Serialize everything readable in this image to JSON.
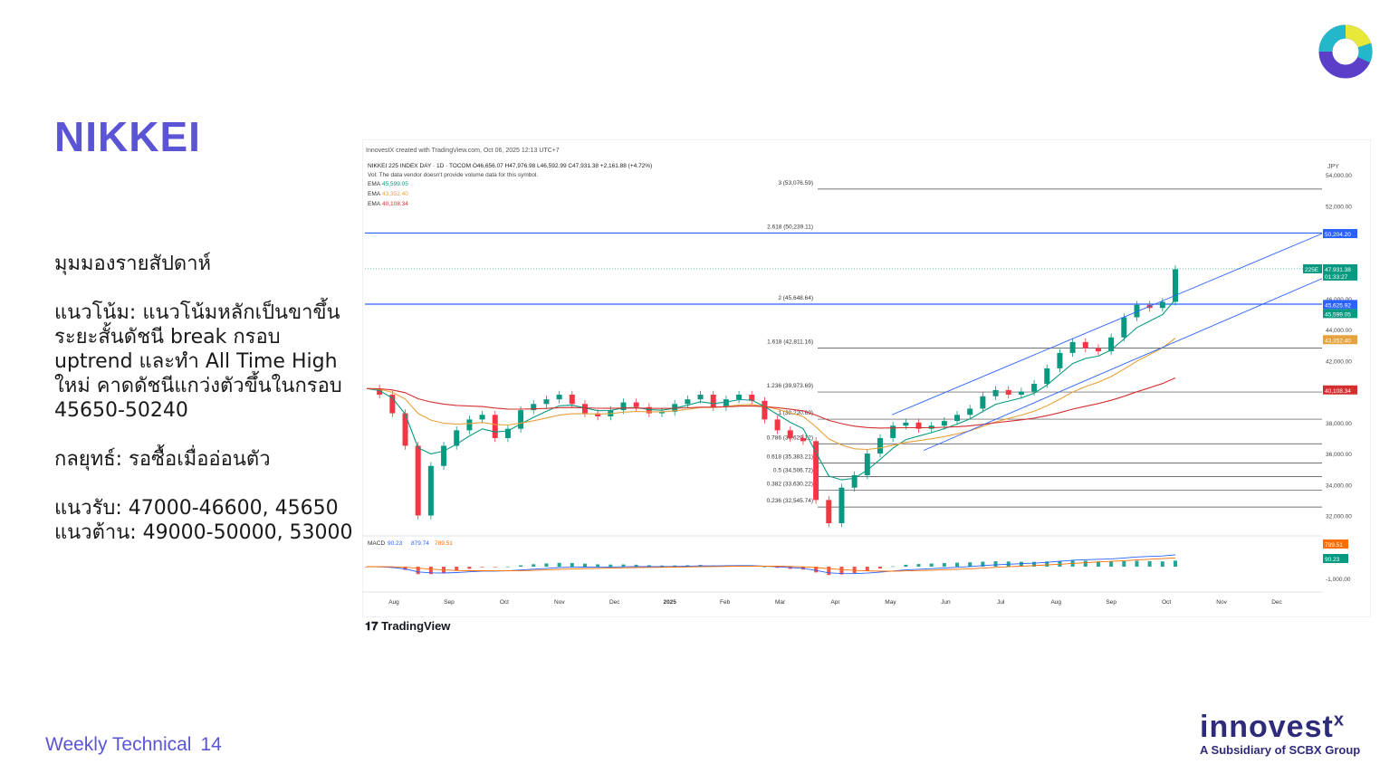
{
  "slide": {
    "title": "NIKKEI",
    "paragraphs": [
      "มุมมองรายสัปดาห์",
      "แนวโน้ม: แนวโน้มหลักเป็นขาขึ้น ระยะสั้นดัชนี break กรอบ uptrend และทำ All Time High ใหม่ คาดดัชนีแกว่งตัวขึ้นในกรอบ 45650-50240",
      "กลยุทธ์: รอซื้อเมื่ออ่อนตัว",
      "แนวรับ: 47000-46600, 45650\nแนวต้าน: 49000-50000, 53000"
    ],
    "footer_label": "Weekly Technical",
    "page_number": "14",
    "brand_word": "innovest",
    "brand_x": "x",
    "brand_subtitle": "A Subsidiary of SCBX Group",
    "tradingview_label": "TradingView",
    "colors": {
      "accent": "#5b55d6",
      "brand": "#2e2b7a",
      "logo_yellow": "#e8e83a",
      "logo_teal": "#22b7c9",
      "logo_purple": "#5b3fc9"
    }
  },
  "chart_data": {
    "type": "candlestick",
    "header": "InnovestX created with TradingView.com, Oct 06, 2025 12:13 UTC+7",
    "symbol_line": "NIKKEI 225 INDEX DAY · 1D · TOCOM  O46,656.07  H47,976.98  L46,592.99  C47,931.38  +2,161.88 (+4.72%)",
    "vol_note": "Vol: The data vendor doesn't provide volume data for this symbol.",
    "ema_labels": [
      "EMA",
      "EMA",
      "EMA"
    ],
    "ema_values": [
      "45,599.05",
      "43,352.40",
      "40,108.34"
    ],
    "ema_colors": [
      "#089981",
      "#e6a23c",
      "#d32f2f"
    ],
    "currency": "JPY",
    "ylim": [
      30800,
      55000
    ],
    "y_ticks": [
      32000,
      34000,
      36000,
      38000,
      40000,
      42000,
      44000,
      46000,
      52000,
      54000
    ],
    "y_tick_labels": [
      "32,000.00",
      "34,000.00",
      "36,000.00",
      "38,000.00",
      "40,000.00",
      "42,000.00",
      "44,000.00",
      "46,000.00",
      "52,000.00",
      "54,000.00"
    ],
    "x_labels": [
      "Aug",
      "Sep",
      "Oct",
      "Nov",
      "Dec",
      "2025",
      "Feb",
      "Mar",
      "Apr",
      "May",
      "Jun",
      "Jul",
      "Aug",
      "Sep",
      "Oct",
      "Nov",
      "Dec"
    ],
    "fib_levels": [
      {
        "label": "3 (53,076.59)",
        "value": 53076.59
      },
      {
        "label": "2.618 (50,239.11)",
        "value": 50239.11
      },
      {
        "label": "2 (45,648.64)",
        "value": 45648.64
      },
      {
        "label": "1.618 (42,811.16)",
        "value": 42811.16
      },
      {
        "label": "1.236 (39,973.69)",
        "value": 39973.69
      },
      {
        "label": "1 (38,220.69)",
        "value": 38220.69
      },
      {
        "label": "0.786 (36,629.12)",
        "value": 36629.12
      },
      {
        "label": "0.618 (35,383.21)",
        "value": 35383.21
      },
      {
        "label": "0.5 (34,506.72)",
        "value": 34506.72
      },
      {
        "label": "0.382 (33,630.22)",
        "value": 33630.22
      },
      {
        "label": "0.236 (32,545.74)",
        "value": 32545.74
      }
    ],
    "price_tags": [
      {
        "label": "50,204.20",
        "value": 50204.2,
        "color": "#2962ff"
      },
      {
        "label": "47,931.38",
        "value": 47931.38,
        "color": "#089981"
      },
      {
        "label": "01:33:27",
        "value": 47650,
        "color": "#089981"
      },
      {
        "label": "45,625.92",
        "value": 45625.92,
        "color": "#2962ff"
      },
      {
        "label": "45,599.05",
        "value": 45599.05,
        "color": "#089981"
      },
      {
        "label": "43,352.40",
        "value": 43352.4,
        "color": "#e6a23c"
      },
      {
        "label": "40,108.34",
        "value": 40108.34,
        "color": "#d32f2f"
      }
    ],
    "symbol_tag": "225E",
    "macd": {
      "label": "MACD",
      "values": [
        "90.23",
        "879.74",
        "789.51"
      ],
      "colors": [
        "#2962ff",
        "#2962ff",
        "#ff6d00"
      ],
      "tick_label": "-1,000.00",
      "tags": [
        {
          "label": "789.51",
          "color": "#ff6d00"
        },
        {
          "label": "90.23",
          "color": "#089981"
        }
      ]
    },
    "approx_close_series": [
      40200,
      39800,
      38600,
      36500,
      32000,
      35200,
      36500,
      37500,
      38200,
      38500,
      37000,
      37600,
      38800,
      39200,
      39500,
      39800,
      39200,
      38600,
      38400,
      38800,
      39300,
      39000,
      38600,
      38700,
      39200,
      39500,
      39800,
      39000,
      39500,
      39800,
      39400,
      38200,
      37500,
      37000,
      36800,
      33000,
      31500,
      33800,
      34600,
      36000,
      37000,
      37800,
      38000,
      37600,
      37800,
      38100,
      38500,
      38900,
      39700,
      40100,
      39800,
      40000,
      40500,
      41500,
      42500,
      43200,
      42800,
      42600,
      43500,
      44800,
      45600,
      45400,
      45800,
      47900
    ]
  }
}
